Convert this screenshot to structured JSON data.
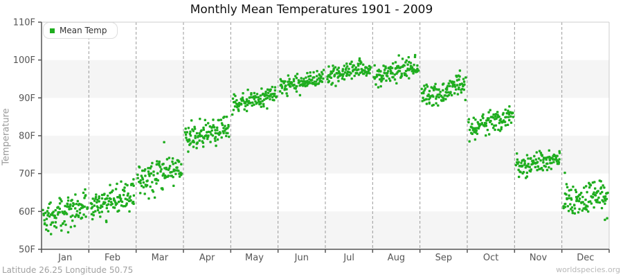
{
  "title": "Monthly Mean Temperatures 1901 - 2009",
  "legend": {
    "label": "Mean Temp"
  },
  "footer": {
    "left": "Latitude 26.25 Longitude 50.75",
    "right": "worldspecies.org"
  },
  "colors": {
    "point": "#1fad1f",
    "band_light": "#ffffff",
    "band_alt": "#f5f5f5",
    "grid": "#999999",
    "axis": "#555555",
    "border": "#cccccc",
    "tick_text": "#555555",
    "ylabel_text": "#999999"
  },
  "chart_data": {
    "type": "scatter",
    "title": "Monthly Mean Temperatures 1901 - 2009",
    "xlabel": "",
    "ylabel": "Temperature",
    "ylim": [
      50,
      110
    ],
    "y_tick_labels": [
      "110F",
      "100F",
      "90F",
      "80F",
      "70F",
      "60F",
      "50F"
    ],
    "y_tick_values": [
      110,
      100,
      90,
      80,
      70,
      60,
      50
    ],
    "x_categories": [
      "Jan",
      "Feb",
      "Mar",
      "Apr",
      "May",
      "Jun",
      "Jul",
      "Aug",
      "Sep",
      "Oct",
      "Nov",
      "Dec"
    ],
    "grid": {
      "vertical_dashed": true,
      "alternating_bands_per_10F": true
    },
    "legend_position": "top-left",
    "years_range": [
      1901,
      2009
    ],
    "n_points_per_month": 109,
    "series": [
      {
        "name": "Mean Temp",
        "note": "One point per year per month; within each month x runs 1901..2009 left to right with a warming trend.",
        "monthly_stats": [
          {
            "month": "Jan",
            "mean_1901": 58.3,
            "mean_2009": 61.2,
            "stddev": 2.1,
            "min": 53.5,
            "max": 65.8,
            "outliers": [
              {
                "i": 18,
                "t": 54.0
              },
              {
                "i": 62,
                "t": 54.5
              }
            ]
          },
          {
            "month": "Feb",
            "mean_1901": 61.0,
            "mean_2009": 64.3,
            "stddev": 2.0,
            "min": 56.5,
            "max": 68.5,
            "outliers": [
              {
                "i": 40,
                "t": 57.2
              }
            ]
          },
          {
            "month": "Mar",
            "mean_1901": 68.0,
            "mean_2009": 72.0,
            "stddev": 2.2,
            "min": 63.0,
            "max": 78.5,
            "outliers": [
              {
                "i": 64,
                "t": 78.3
              },
              {
                "i": 27,
                "t": 63.4
              }
            ]
          },
          {
            "month": "Apr",
            "mean_1901": 79.3,
            "mean_2009": 82.3,
            "stddev": 1.6,
            "min": 75.5,
            "max": 85.0,
            "outliers": [
              {
                "i": 8,
                "t": 75.8
              }
            ]
          },
          {
            "month": "May",
            "mean_1901": 88.3,
            "mean_2009": 91.0,
            "stddev": 1.2,
            "min": 85.5,
            "max": 93.5,
            "outliers": []
          },
          {
            "month": "Jun",
            "mean_1901": 92.8,
            "mean_2009": 95.3,
            "stddev": 1.2,
            "min": 89.5,
            "max": 97.5,
            "outliers": []
          },
          {
            "month": "Jul",
            "mean_1901": 95.8,
            "mean_2009": 98.0,
            "stddev": 1.2,
            "min": 92.5,
            "max": 100.5,
            "outliers": [
              {
                "i": 80,
                "t": 100.4
              }
            ]
          },
          {
            "month": "Aug",
            "mean_1901": 95.5,
            "mean_2009": 98.3,
            "stddev": 1.4,
            "min": 92.5,
            "max": 101.3,
            "outliers": [
              {
                "i": 60,
                "t": 101.2
              },
              {
                "i": 100,
                "t": 100.8
              }
            ]
          },
          {
            "month": "Sep",
            "mean_1901": 90.2,
            "mean_2009": 93.2,
            "stddev": 1.4,
            "min": 87.0,
            "max": 97.3,
            "outliers": [
              {
                "i": 95,
                "t": 97.2
              }
            ]
          },
          {
            "month": "Oct",
            "mean_1901": 82.0,
            "mean_2009": 85.3,
            "stddev": 1.5,
            "min": 78.5,
            "max": 88.5,
            "outliers": [
              {
                "i": 15,
                "t": 79.0
              }
            ]
          },
          {
            "month": "Nov",
            "mean_1901": 71.8,
            "mean_2009": 74.3,
            "stddev": 1.5,
            "min": 68.0,
            "max": 77.0,
            "outliers": []
          },
          {
            "month": "Dec",
            "mean_1901": 62.5,
            "mean_2009": 64.5,
            "stddev": 1.9,
            "min": 57.5,
            "max": 70.3,
            "outliers": [
              {
                "i": 4,
                "t": 70.2
              },
              {
                "i": 103,
                "t": 57.8
              },
              {
                "i": 108,
                "t": 58.2
              }
            ]
          }
        ]
      }
    ]
  }
}
